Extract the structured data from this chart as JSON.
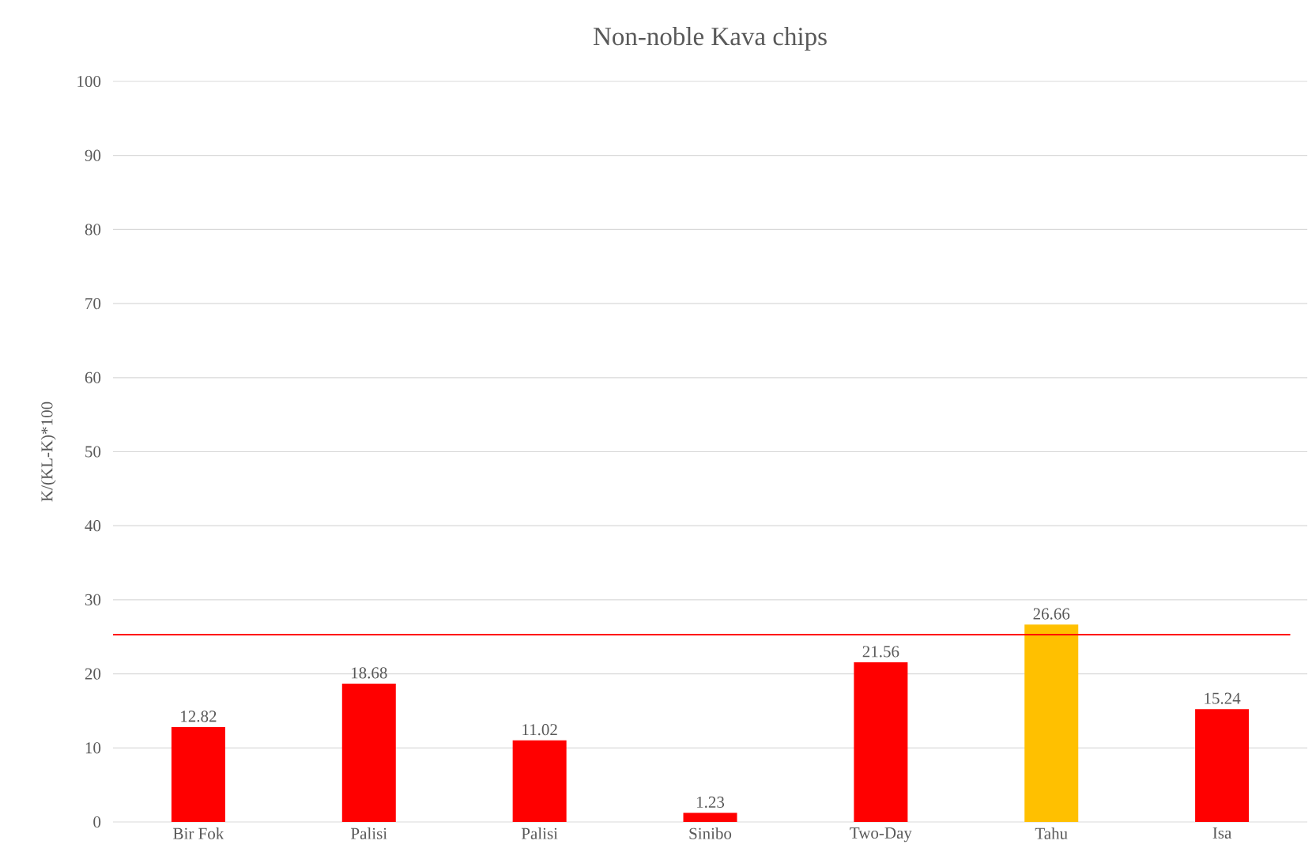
{
  "chart_data": {
    "type": "bar",
    "title": "Non-noble Kava chips",
    "ylabel": "K/(KL-K)*100",
    "categories": [
      "Bir Fok",
      "Palisi",
      "Palisi",
      "Sinibo",
      "Two-Day",
      "Tahu",
      "Isa"
    ],
    "values": [
      12.82,
      18.68,
      11.02,
      1.23,
      21.56,
      26.66,
      15.24
    ],
    "colors": [
      "#ff0000",
      "#ff0000",
      "#ff0000",
      "#ff0000",
      "#ff0000",
      "#ffc000",
      "#ff0000"
    ],
    "ylim": [
      0,
      100
    ],
    "yticks": [
      0,
      10,
      20,
      30,
      40,
      50,
      60,
      70,
      80,
      90,
      100
    ],
    "grid": "y",
    "data_labels": true,
    "ref_lines": [
      {
        "axis": "y",
        "value": 25.3,
        "color": "#ff0000"
      }
    ]
  }
}
